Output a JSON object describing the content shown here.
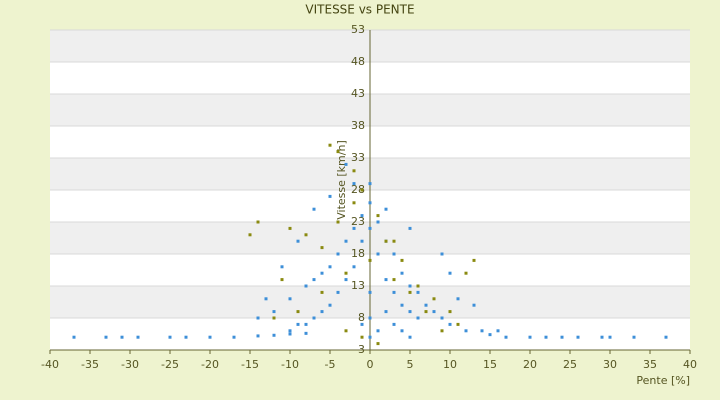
{
  "chart_data": {
    "type": "scatter",
    "title": "VITESSE vs PENTE",
    "x_label": "Pente [%]",
    "y_label": "Vitesse [km/h]",
    "xlim": [
      -40,
      40
    ],
    "ylim": [
      3,
      53
    ],
    "xticks": [
      -40,
      -35,
      -30,
      -25,
      -20,
      -15,
      -10,
      -5,
      0,
      5,
      10,
      15,
      20,
      25,
      30,
      35,
      40
    ],
    "yticks": [
      3,
      8,
      13,
      18,
      23,
      28,
      33,
      38,
      43,
      48,
      53
    ],
    "grid": true,
    "series": [
      {
        "color": "#3d8fd8",
        "x": [
          -37,
          -33,
          -31,
          -29,
          -25,
          -23,
          -20,
          -17,
          -14,
          -12,
          -10,
          -8,
          15,
          17,
          20,
          22,
          24,
          26,
          29,
          30,
          33,
          37,
          -1,
          0,
          1,
          -2,
          2,
          3,
          4,
          5,
          6,
          -3,
          -4,
          -5,
          -6,
          -7,
          -8,
          -9,
          -10,
          0,
          -1,
          1,
          2,
          3,
          4,
          5,
          6,
          7,
          8,
          9,
          10,
          12,
          14,
          -2,
          -3,
          -4,
          -5,
          -6,
          -7,
          -8,
          -10,
          -12,
          -14,
          0,
          0,
          0,
          1,
          -1,
          2,
          3,
          4,
          5,
          -5,
          -2,
          0,
          2,
          5,
          9,
          10,
          -13,
          -11,
          -9,
          -7,
          -3,
          13,
          16,
          11
        ],
        "y": [
          5,
          5,
          5,
          5,
          5,
          5,
          5,
          5,
          5.2,
          5.3,
          5.5,
          5.6,
          5.4,
          5,
          5,
          5,
          5,
          5,
          5,
          5,
          5,
          5,
          20,
          22,
          18,
          16,
          14,
          12,
          10,
          9,
          8,
          14,
          12,
          10,
          9,
          8,
          7,
          7,
          6,
          26,
          24,
          23,
          20,
          18,
          15,
          13,
          12,
          10,
          9,
          8,
          7,
          6,
          6,
          22,
          20,
          18,
          16,
          15,
          14,
          13,
          11,
          9,
          8,
          12,
          8,
          5,
          6,
          7,
          9,
          7,
          6,
          5,
          27,
          29,
          29,
          25,
          22,
          18,
          15,
          11,
          16,
          20,
          25,
          32,
          10,
          6,
          11
        ]
      },
      {
        "color": "#8a8a10",
        "x": [
          -5,
          -4,
          -2,
          -1,
          1,
          3,
          -14,
          -10,
          -8,
          -6,
          -4,
          -2,
          2,
          4,
          6,
          8,
          10,
          13,
          -12,
          -9,
          -6,
          -3,
          0,
          3,
          5,
          7,
          9,
          11,
          -1,
          1,
          -3,
          -15,
          12,
          -11
        ],
        "y": [
          35,
          34,
          31,
          28,
          24,
          20,
          23,
          22,
          21,
          19,
          23,
          26,
          20,
          17,
          13,
          11,
          9,
          17,
          8,
          9,
          12,
          15,
          17,
          14,
          12,
          9,
          6,
          7,
          5,
          4,
          6,
          21,
          15,
          14
        ]
      }
    ]
  }
}
